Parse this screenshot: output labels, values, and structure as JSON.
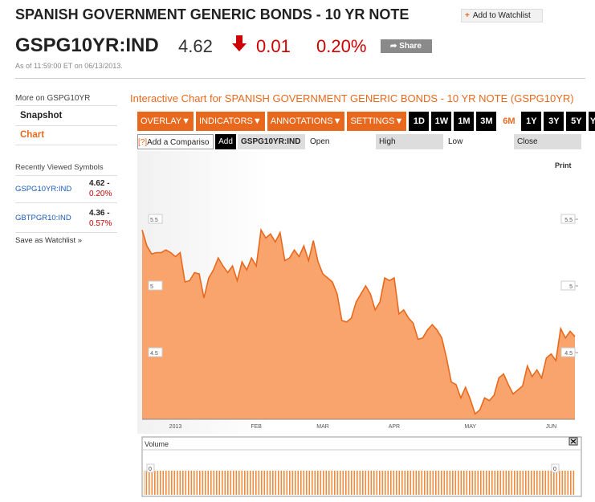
{
  "header": {
    "title": "SPANISH GOVERNMENT GENERIC BONDS - 10 YR NOTE",
    "watchlist_button": "Add to Watchlist",
    "symbol": "GSPG10YR:IND",
    "price": "4.62",
    "change": "0.01",
    "change_pct": "0.20%",
    "share_button": "Share",
    "timestamp": "As of 11:59:00 ET on 06/13/2013."
  },
  "sidebar": {
    "more_on": "More on GSPG10YR",
    "links": [
      "Snapshot",
      "Chart"
    ],
    "recent_title": "Recently Viewed Symbols",
    "recent": [
      {
        "symbol": "GSPG10YR:IND",
        "price": "4.62 -",
        "change": "0.20%"
      },
      {
        "symbol": "GBTPGR10:IND",
        "price": "4.36 -",
        "change": "0.57%"
      }
    ],
    "save": "Save as Watchlist"
  },
  "chart_heading": "Interactive Chart for SPANISH GOVERNMENT GENERIC BONDS - 10 YR NOTE (GSPG10YR)",
  "toolbar": {
    "menus": [
      "OVERLAY",
      "INDICATORS",
      "ANNOTATIONS",
      "SETTINGS"
    ],
    "ranges": [
      "1D",
      "1W",
      "1M",
      "3M",
      "6M",
      "1Y",
      "3Y",
      "5Y",
      "YTD"
    ],
    "compare_placeholder": "Add a Compariso",
    "add_button": "Add",
    "symbol": "GSPG10YR:IND",
    "fields": [
      "Open",
      "High",
      "Low",
      "Close"
    ],
    "print": "Print"
  },
  "chart_data": {
    "type": "area",
    "color": "#f9a46c",
    "line_color": "#e8691e",
    "categories": [
      null,
      null,
      null,
      null,
      null,
      null,
      null,
      "2013",
      null,
      null,
      null,
      null,
      null,
      null,
      null,
      null,
      null,
      null,
      null,
      null,
      null,
      null,
      null,
      null,
      "FEB",
      null,
      null,
      null,
      null,
      null,
      null,
      null,
      null,
      null,
      null,
      null,
      null,
      null,
      "MAR",
      null,
      null,
      null,
      null,
      null,
      null,
      null,
      null,
      null,
      null,
      null,
      null,
      null,
      null,
      "APR",
      null,
      null,
      null,
      null,
      null,
      null,
      null,
      null,
      null,
      null,
      null,
      null,
      null,
      null,
      null,
      "MAY",
      null,
      null,
      null,
      null,
      null,
      null,
      null,
      null,
      null,
      null,
      null,
      null,
      null,
      null,
      null,
      null,
      "JUN",
      null,
      null,
      null,
      null,
      null
    ],
    "values": [
      5.42,
      5.3,
      5.24,
      5.25,
      5.25,
      5.27,
      5.25,
      5.22,
      5.25,
      5.03,
      5.04,
      5.1,
      5.09,
      4.91,
      5.06,
      5.12,
      5.21,
      5.15,
      5.1,
      5.15,
      5.04,
      5.18,
      5.12,
      5.21,
      5.15,
      5.42,
      5.36,
      5.39,
      5.33,
      5.4,
      5.19,
      5.21,
      5.27,
      5.22,
      5.3,
      5.19,
      5.34,
      5.18,
      5.09,
      5.06,
      5.03,
      4.94,
      4.74,
      4.73,
      4.76,
      4.88,
      4.94,
      5.0,
      4.94,
      4.82,
      4.88,
      5.06,
      5.04,
      5.06,
      4.79,
      4.82,
      4.76,
      4.72,
      4.6,
      4.61,
      4.67,
      4.71,
      4.67,
      4.61,
      4.46,
      4.28,
      4.26,
      4.16,
      4.24,
      4.15,
      4.04,
      4.07,
      4.16,
      4.14,
      4.18,
      4.31,
      4.34,
      4.26,
      4.19,
      4.22,
      4.25,
      4.4,
      4.32,
      4.37,
      4.31,
      4.46,
      4.49,
      4.44,
      4.68,
      4.61,
      4.66,
      4.62
    ],
    "ylim": [
      4,
      6
    ],
    "yticks": [
      4.5,
      5,
      5.5
    ]
  },
  "volume_panel": {
    "title": "Volume",
    "yticks": [
      0
    ]
  }
}
